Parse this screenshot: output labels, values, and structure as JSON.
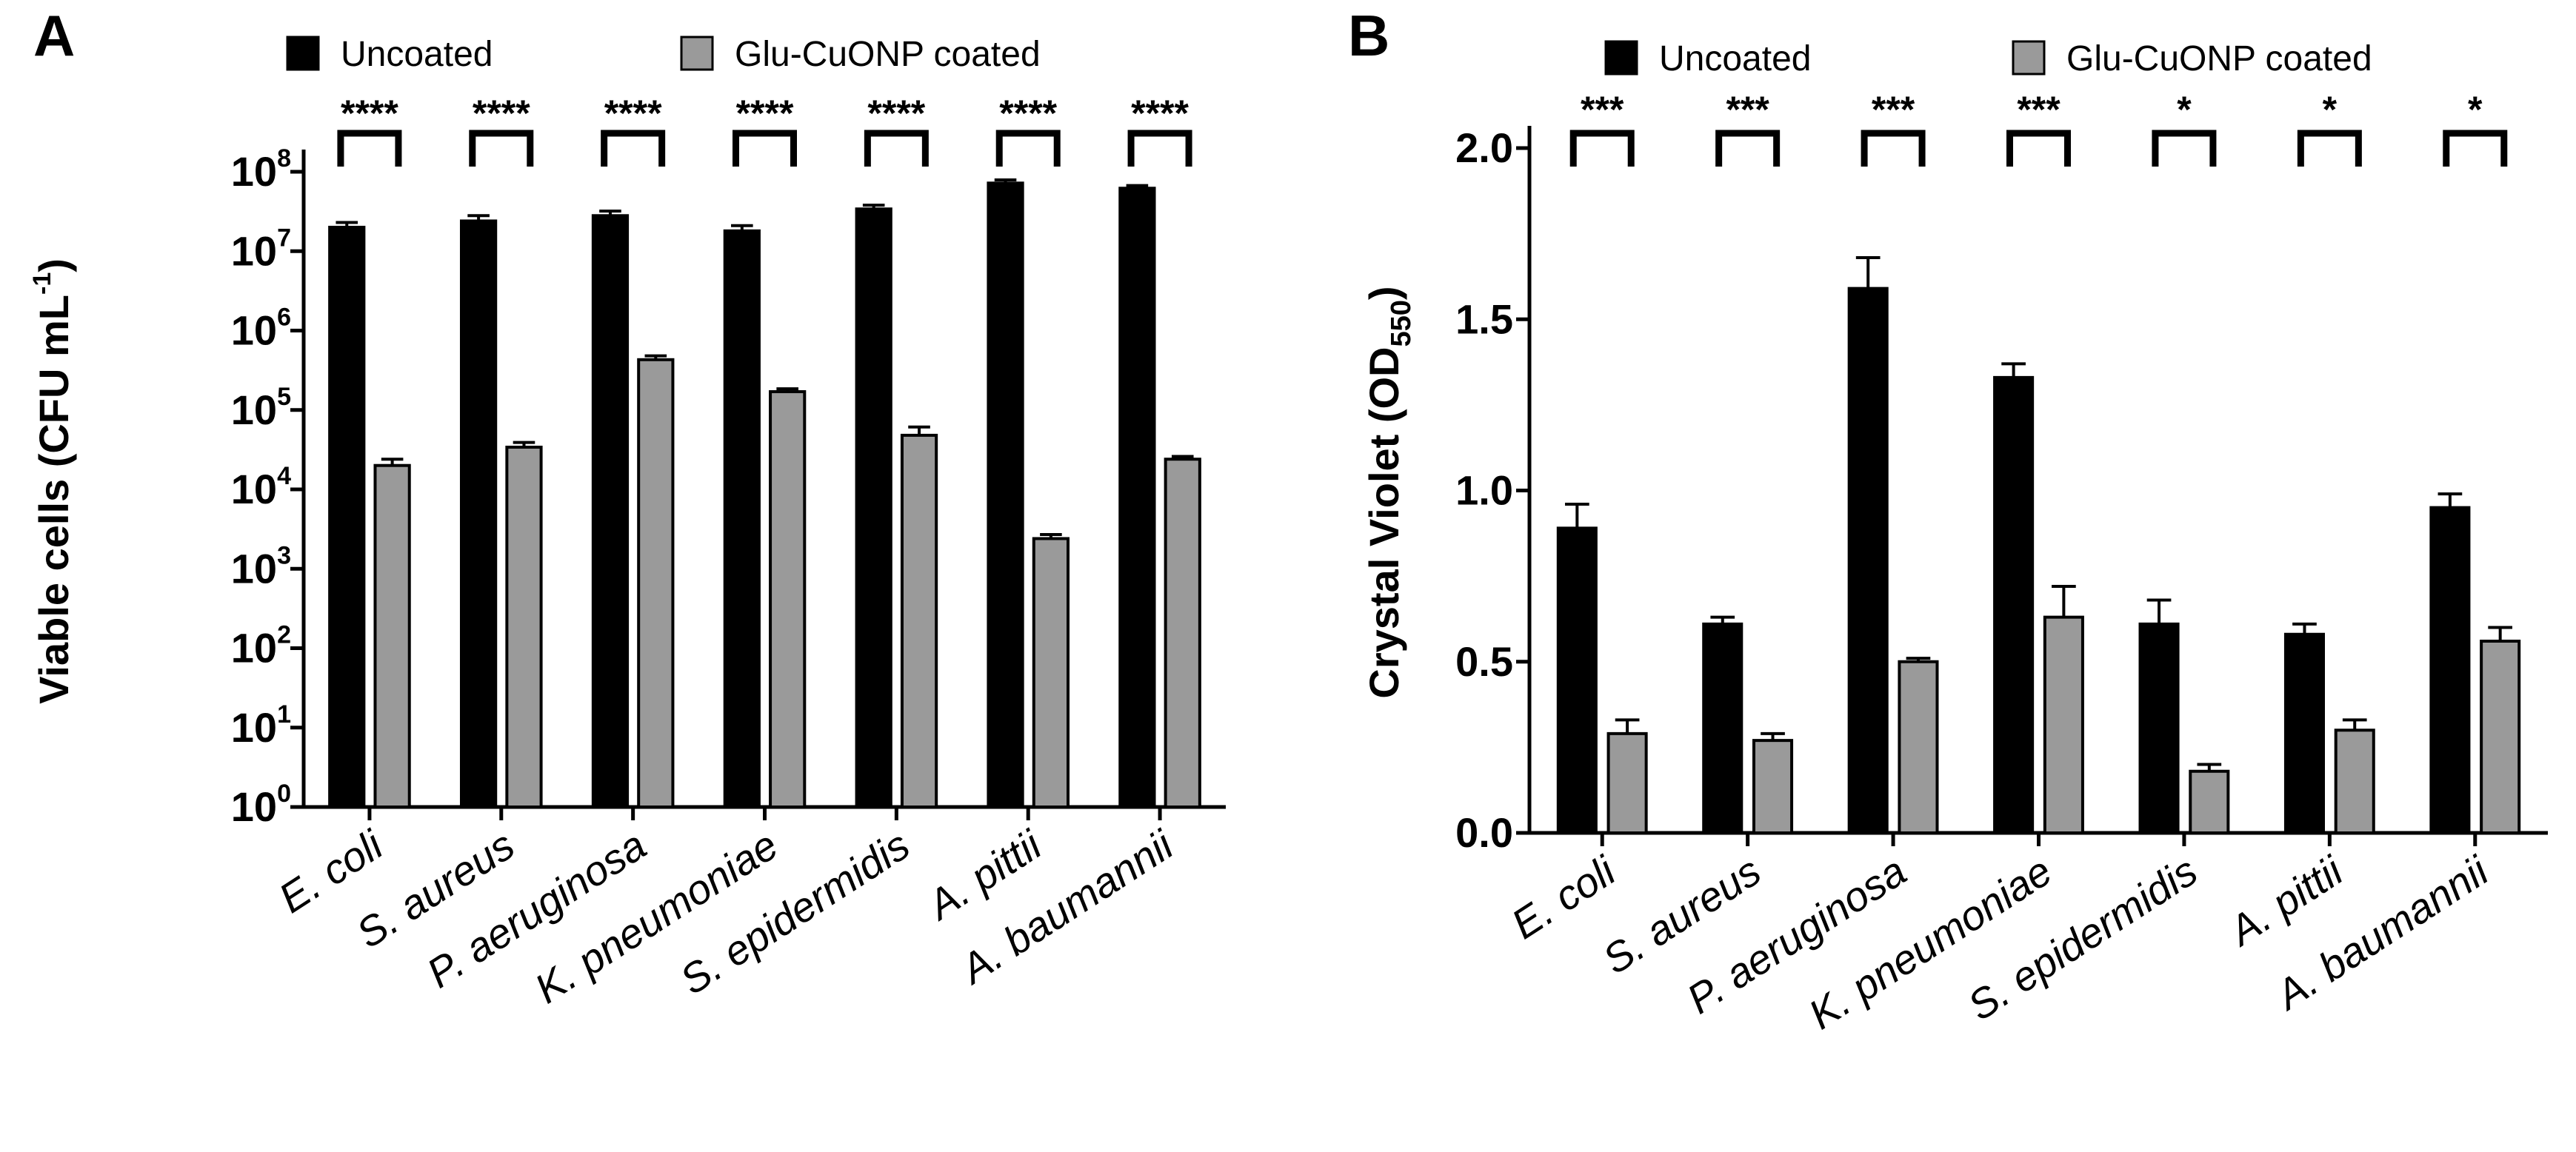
{
  "figure": {
    "colors": {
      "uncoated": "#000000",
      "coated": "#9a9a9a",
      "axis": "#000000",
      "background": "#ffffff"
    }
  },
  "chart_data": [
    {
      "panel": "A",
      "type": "bar",
      "scale": "log",
      "categories": [
        "E. coli",
        "S. aureus",
        "P. aeruginosa",
        "K. pneumoniae",
        "S. epidermidis",
        "A. pittii",
        "A. baumannii"
      ],
      "series": [
        {
          "name": "Uncoated",
          "values": [
            20000000,
            24000000,
            28000000,
            18000000,
            34000000,
            72000000,
            62000000
          ],
          "errors": [
            3000000,
            4000000,
            4000000,
            3000000,
            4000000,
            7000000,
            5000000
          ]
        },
        {
          "name": "Glu-CuONP coated",
          "values": [
            20000,
            34000,
            430000,
            170000,
            48000,
            2400,
            24000
          ],
          "errors": [
            4000,
            5000,
            50000,
            15000,
            13000,
            300,
            2000
          ]
        }
      ],
      "significance": [
        "****",
        "****",
        "****",
        "****",
        "****",
        "****",
        "****"
      ],
      "ylabel": {
        "main": "Viable cells (CFU mL",
        "sup": "-1",
        "close": ")"
      },
      "yticks": [
        {
          "base": "10",
          "exp": "0",
          "value": 1
        },
        {
          "base": "10",
          "exp": "1",
          "value": 10
        },
        {
          "base": "10",
          "exp": "2",
          "value": 100
        },
        {
          "base": "10",
          "exp": "3",
          "value": 1000
        },
        {
          "base": "10",
          "exp": "4",
          "value": 10000
        },
        {
          "base": "10",
          "exp": "5",
          "value": 100000
        },
        {
          "base": "10",
          "exp": "6",
          "value": 1000000
        },
        {
          "base": "10",
          "exp": "7",
          "value": 10000000
        },
        {
          "base": "10",
          "exp": "8",
          "value": 100000000
        }
      ],
      "ylim": [
        1,
        100000000
      ],
      "legend_position": "top"
    },
    {
      "panel": "B",
      "type": "bar",
      "scale": "linear",
      "categories": [
        "E. coli",
        "S. aureus",
        "P. aeruginosa",
        "K. pneumoniae",
        "S. epidermidis",
        "A. pittii",
        "A. baumannii"
      ],
      "series": [
        {
          "name": "Uncoated",
          "values": [
            0.89,
            0.61,
            1.59,
            1.33,
            0.61,
            0.58,
            0.95
          ],
          "errors": [
            0.07,
            0.02,
            0.09,
            0.04,
            0.07,
            0.03,
            0.04
          ]
        },
        {
          "name": "Glu-CuONP coated",
          "values": [
            0.29,
            0.27,
            0.5,
            0.63,
            0.18,
            0.3,
            0.56
          ],
          "errors": [
            0.04,
            0.02,
            0.01,
            0.09,
            0.02,
            0.03,
            0.04
          ]
        }
      ],
      "significance": [
        "***",
        "***",
        "***",
        "***",
        "*",
        "*",
        "*"
      ],
      "ylabel": {
        "main": "Crystal Violet (OD",
        "sub": "550",
        "close": ")"
      },
      "yticks": [
        {
          "label": "0.0",
          "value": 0.0
        },
        {
          "label": "0.5",
          "value": 0.5
        },
        {
          "label": "1.0",
          "value": 1.0
        },
        {
          "label": "1.5",
          "value": 1.5
        },
        {
          "label": "2.0",
          "value": 2.0
        }
      ],
      "ylim": [
        0,
        2.0
      ],
      "legend_position": "top"
    }
  ]
}
